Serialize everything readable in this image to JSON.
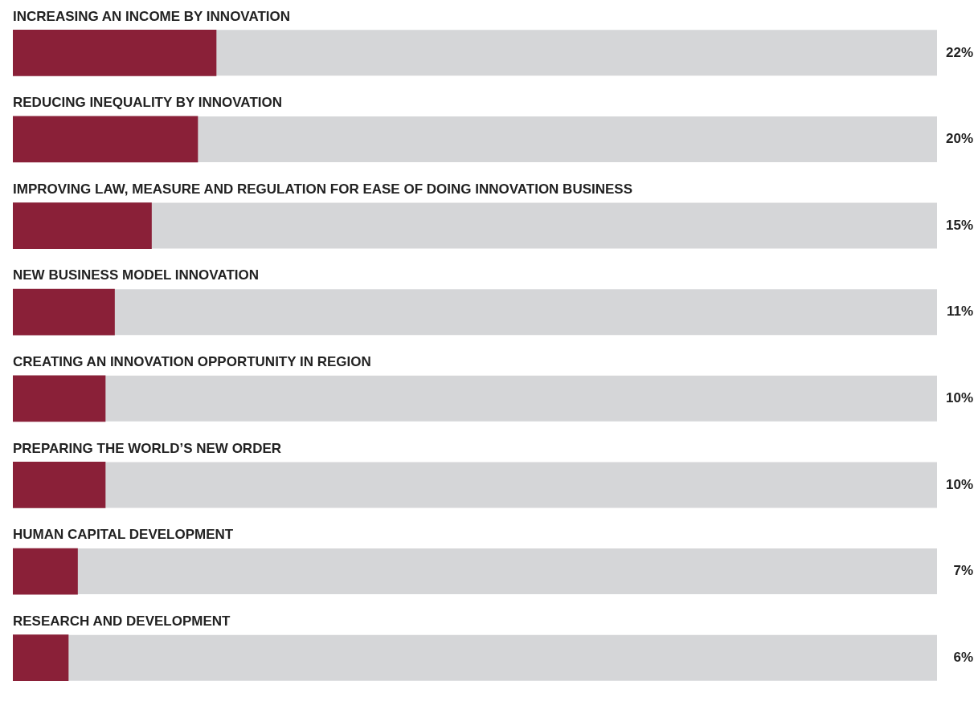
{
  "chart_data": {
    "type": "bar",
    "orientation": "horizontal",
    "categories": [
      "INCREASING AN INCOME BY INNOVATION",
      "REDUCING INEQUALITY BY INNOVATION",
      "IMPROVING LAW, MEASURE AND REGULATION FOR EASE OF DOING INNOVATION BUSINESS",
      "NEW BUSINESS MODEL INNOVATION",
      "CREATING AN INNOVATION OPPORTUNITY IN REGION",
      "PREPARING THE WORLD’S NEW ORDER",
      "HUMAN CAPITAL DEVELOPMENT",
      "RESEARCH AND DEVELOPMENT"
    ],
    "values": [
      22,
      20,
      15,
      11,
      10,
      10,
      7,
      6
    ],
    "value_labels": [
      "22%",
      "20%",
      "15%",
      "11%",
      "10%",
      "10%",
      "7%",
      "6%"
    ],
    "color": "#8a2038",
    "xlim": [
      0,
      100
    ]
  }
}
